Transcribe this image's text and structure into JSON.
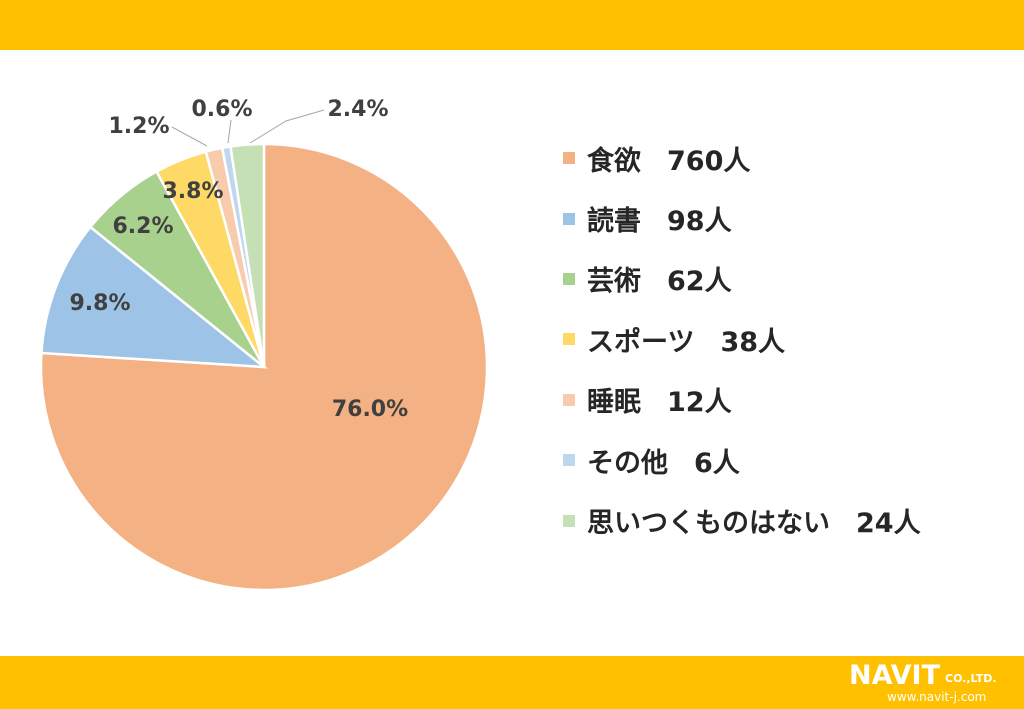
{
  "chart_data": {
    "type": "pie",
    "title": "",
    "start_direction": "12 o'clock, clockwise",
    "slices": [
      {
        "name": "食欲",
        "count_label": "760人",
        "value": 760,
        "percent_label": "76.0%",
        "color": "#F4B183"
      },
      {
        "name": "読書",
        "count_label": "98人",
        "value": 98,
        "percent_label": "9.8%",
        "color": "#9DC3E6"
      },
      {
        "name": "芸術",
        "count_label": "62人",
        "value": 62,
        "percent_label": "6.2%",
        "color": "#A9D18E"
      },
      {
        "name": "スポーツ",
        "count_label": "38人",
        "value": 38,
        "percent_label": "3.8%",
        "color": "#FFD966"
      },
      {
        "name": "睡眠",
        "count_label": "12人",
        "value": 12,
        "percent_label": "1.2%",
        "color": "#F8CBAD"
      },
      {
        "name": "その他",
        "count_label": "6人",
        "value": 6,
        "percent_label": "0.6%",
        "color": "#BDD7EE"
      },
      {
        "name": "思いつくものはない",
        "count_label": "24人",
        "value": 24,
        "percent_label": "2.4%",
        "color": "#C5E0B4"
      }
    ],
    "legend_position": "right"
  },
  "logo": {
    "word": "NAVIT",
    "suffix": "CO.,LTD.",
    "url": "www.navit-j.com"
  },
  "colors": {
    "band": "#FFC000",
    "label_text": "#404040"
  }
}
